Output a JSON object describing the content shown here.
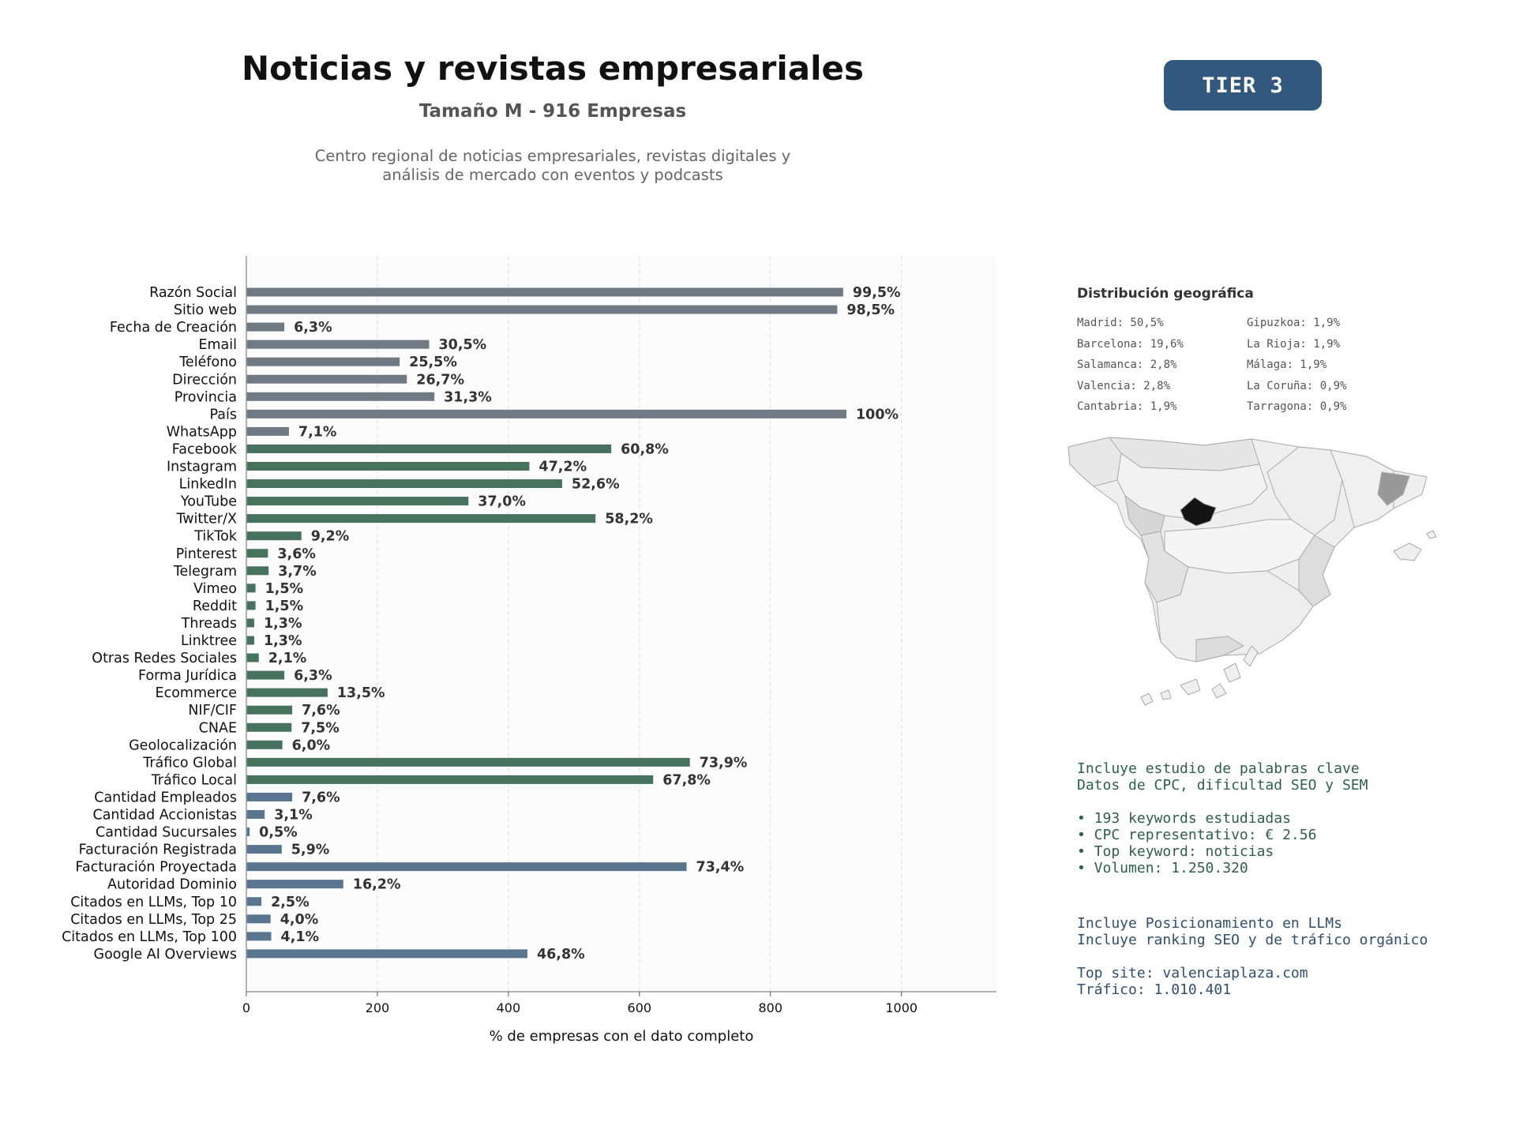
{
  "header": {
    "title": "Noticias y revistas empresariales",
    "subtitle": "Tamaño M - 916 Empresas",
    "description_lines": [
      "Centro regional de noticias empresariales, revistas digitales y",
      "análisis de mercado con eventos y podcasts"
    ],
    "tier_badge": "TIER 3"
  },
  "colors": {
    "gray": "#6f7a84",
    "green": "#46725e",
    "blue": "#5a7590",
    "badge": "#33587e"
  },
  "chart_data": {
    "type": "bar",
    "orientation": "horizontal",
    "xlabel": "% de empresas con el dato completo",
    "xlim": [
      0,
      1145
    ],
    "xticks": [
      0,
      200,
      400,
      600,
      800,
      1000
    ],
    "grid": "vertical dashed",
    "categories": [
      "Razón Social",
      "Sitio web",
      "Fecha de Creación",
      "Email",
      "Teléfono",
      "Dirección",
      "Provincia",
      "País",
      "WhatsApp",
      "Facebook",
      "Instagram",
      "LinkedIn",
      "YouTube",
      "Twitter/X",
      "TikTok",
      "Pinterest",
      "Telegram",
      "Vimeo",
      "Reddit",
      "Threads",
      "Linktree",
      "Otras Redes Sociales",
      "Forma Jurídica",
      "Ecommerce",
      "NIF/CIF",
      "CNAE",
      "Geolocalización",
      "Tráfico Global",
      "Tráfico Local",
      "Cantidad Empleados",
      "Cantidad Accionistas",
      "Cantidad Sucursales",
      "Facturación Registrada",
      "Facturación Proyectada",
      "Autoridad Dominio",
      "Citados en LLMs, Top 10",
      "Citados en LLMs, Top 25",
      "Citados en LLMs, Top 100",
      "Google AI Overviews"
    ],
    "values": [
      911,
      902,
      58,
      279,
      234,
      245,
      287,
      916,
      65,
      557,
      432,
      482,
      339,
      533,
      84,
      33,
      34,
      14,
      14,
      12,
      12,
      19,
      58,
      124,
      70,
      69,
      55,
      677,
      621,
      70,
      28,
      5,
      54,
      672,
      148,
      23,
      37,
      38,
      429
    ],
    "labels": [
      "99,5%",
      "98,5%",
      "6,3%",
      "30,5%",
      "25,5%",
      "26,7%",
      "31,3%",
      "100%",
      "7,1%",
      "60,8%",
      "47,2%",
      "52,6%",
      "37,0%",
      "58,2%",
      "9,2%",
      "3,6%",
      "3,7%",
      "1,5%",
      "1,5%",
      "1,3%",
      "1,3%",
      "2,1%",
      "6,3%",
      "13,5%",
      "7,6%",
      "7,5%",
      "6,0%",
      "73,9%",
      "67,8%",
      "7,6%",
      "3,1%",
      "0,5%",
      "5,9%",
      "73,4%",
      "16,2%",
      "2,5%",
      "4,0%",
      "4,1%",
      "46,8%"
    ],
    "groups": [
      "gray",
      "gray",
      "gray",
      "gray",
      "gray",
      "gray",
      "gray",
      "gray",
      "gray",
      "green",
      "green",
      "green",
      "green",
      "green",
      "green",
      "green",
      "green",
      "green",
      "green",
      "green",
      "green",
      "green",
      "green",
      "green",
      "green",
      "green",
      "green",
      "green",
      "green",
      "blue",
      "blue",
      "blue",
      "blue",
      "blue",
      "blue",
      "blue",
      "blue",
      "blue",
      "blue"
    ]
  },
  "geo": {
    "title": "Distribución geográfica",
    "col1": [
      "Madrid: 50,5%",
      "Barcelona: 19,6%",
      "Salamanca: 2,8%",
      "Valencia: 2,8%",
      "Cantabria: 1,9%"
    ],
    "col2": [
      "Gipuzkoa: 1,9%",
      "La Rioja: 1,9%",
      "Málaga: 1,9%",
      "La Coruña: 0,9%",
      "Tarragona: 0,9%"
    ]
  },
  "keywords": {
    "line1": "Incluye estudio de palabras clave",
    "line2": "Datos de CPC, dificultad SEO y SEM",
    "bullet1": "• 193 keywords estudiadas",
    "bullet2": "• CPC representativo: € 2.56",
    "bullet3": "• Top keyword: noticias",
    "bullet4": "• Volumen: 1.250.320"
  },
  "llm": {
    "line1": "Incluye Posicionamiento en LLMs",
    "line2": "Incluye ranking SEO y de tráfico orgánico",
    "top_site": "Top site: valenciaplaza.com",
    "traffic": "Tráfico: 1.010.401"
  }
}
